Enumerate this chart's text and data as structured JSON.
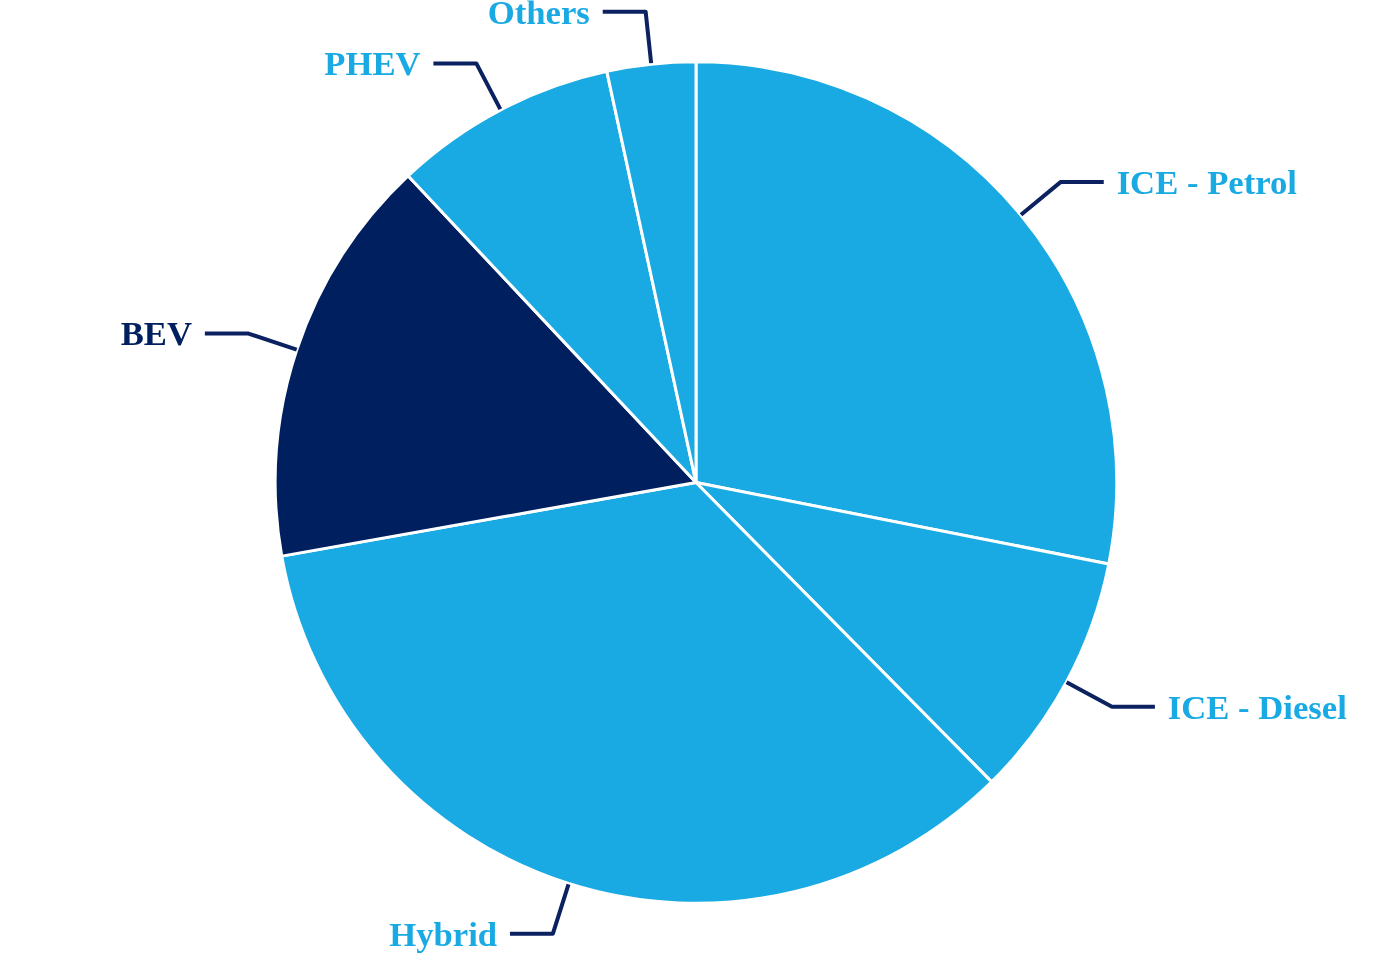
{
  "chart_data": {
    "type": "pie",
    "categories": [
      "ICE - Petrol",
      "ICE - Diesel",
      "Hybrid",
      "BEV",
      "PHEV",
      "Others"
    ],
    "values": [
      28.1,
      9.5,
      34.6,
      15.8,
      8.6,
      3.4
    ],
    "colors": [
      "#19aae3",
      "#19aae3",
      "#19aae3",
      "#001f5f",
      "#19aae3",
      "#19aae3"
    ]
  }
}
